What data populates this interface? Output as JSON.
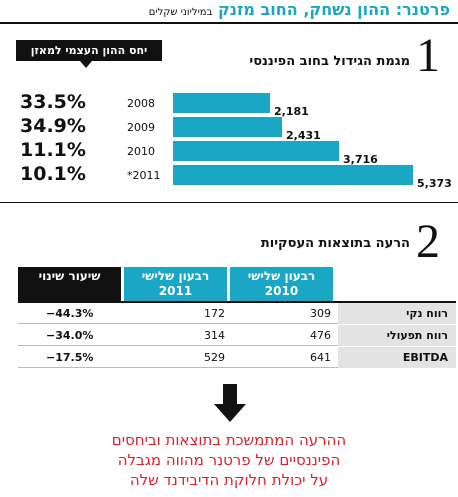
{
  "header": {
    "title": "פרטנר: ההון נשחק, החוב מזנק",
    "subtitle": "במיליוני שקלים"
  },
  "section1": {
    "number": "1",
    "title": "מגמת הגידול בחוב הפיננסי",
    "callout": "יחס ההון העצמי למאזן"
  },
  "chart_data": {
    "type": "bar",
    "title": "מגמת הגידול בחוב הפיננסי",
    "categories": [
      "2008",
      "2009",
      "2010",
      "*2011"
    ],
    "values": [
      2181,
      2431,
      3716,
      5373
    ],
    "value_labels": [
      "2,181",
      "2,431",
      "3,716",
      "5,373"
    ],
    "equity_ratio_labels": [
      "33.5%",
      "34.9%",
      "11.1%",
      "10.1%"
    ],
    "equity_ratio": [
      33.5,
      34.9,
      11.1,
      10.1
    ],
    "orientation": "horizontal",
    "grid": false,
    "color": "#1aa6c5"
  },
  "section2": {
    "number": "2",
    "title": "הרעה בתוצאות העסקיות",
    "columns": [
      {
        "line1": "רבעון שלישי",
        "line2": "2010",
        "color": "#1aa6c5"
      },
      {
        "line1": "רבעון שלישי",
        "line2": "2011",
        "color": "#1aa6c5"
      },
      {
        "line1": "שיעור שינוי",
        "line2": "",
        "color": "#111111"
      }
    ],
    "rows": [
      {
        "label": "רווח נקי",
        "q2010": "309",
        "q2011": "172",
        "change": "−44.3%"
      },
      {
        "label": "רווח תפעולי",
        "q2010": "476",
        "q2011": "314",
        "change": "−34.0%"
      },
      {
        "label": "EBITDA",
        "q2010": "641",
        "q2011": "529",
        "change": "−17.5%"
      }
    ]
  },
  "conclusion": {
    "line1": "ההרעה המתמשכת בתוצאות וביחסים",
    "line2": "הפיננסיים של פרטנר מהווה מגבלה",
    "line3": "על יכולת חלוקת הדיבידנד שלה"
  }
}
